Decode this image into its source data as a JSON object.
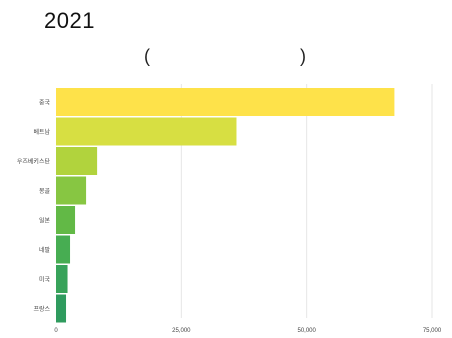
{
  "title": "2021",
  "subtitle": {
    "left": "(",
    "right": ")"
  },
  "colors": {
    "bars": [
      "#fee24a",
      "#d7df42",
      "#b1d33d",
      "#87c642",
      "#62b946",
      "#47ad52",
      "#38a35a",
      "#2f9b5e"
    ],
    "grid": "#e6e6e6",
    "label": "#444444"
  },
  "chart_data": {
    "type": "bar",
    "orientation": "horizontal",
    "categories": [
      "중국",
      "베트남",
      "우즈베키스탄",
      "몽골",
      "일본",
      "네팔",
      "미국",
      "프랑스"
    ],
    "values": [
      67500,
      36000,
      8200,
      6000,
      3800,
      2800,
      2300,
      2000
    ],
    "xlim": [
      0,
      75000
    ],
    "xticks": [
      0,
      25000,
      50000,
      75000
    ],
    "xtick_labels": [
      "0",
      "25,000",
      "50,000",
      "75,000"
    ],
    "grid": true,
    "title": "2021",
    "xlabel": "",
    "ylabel": ""
  }
}
